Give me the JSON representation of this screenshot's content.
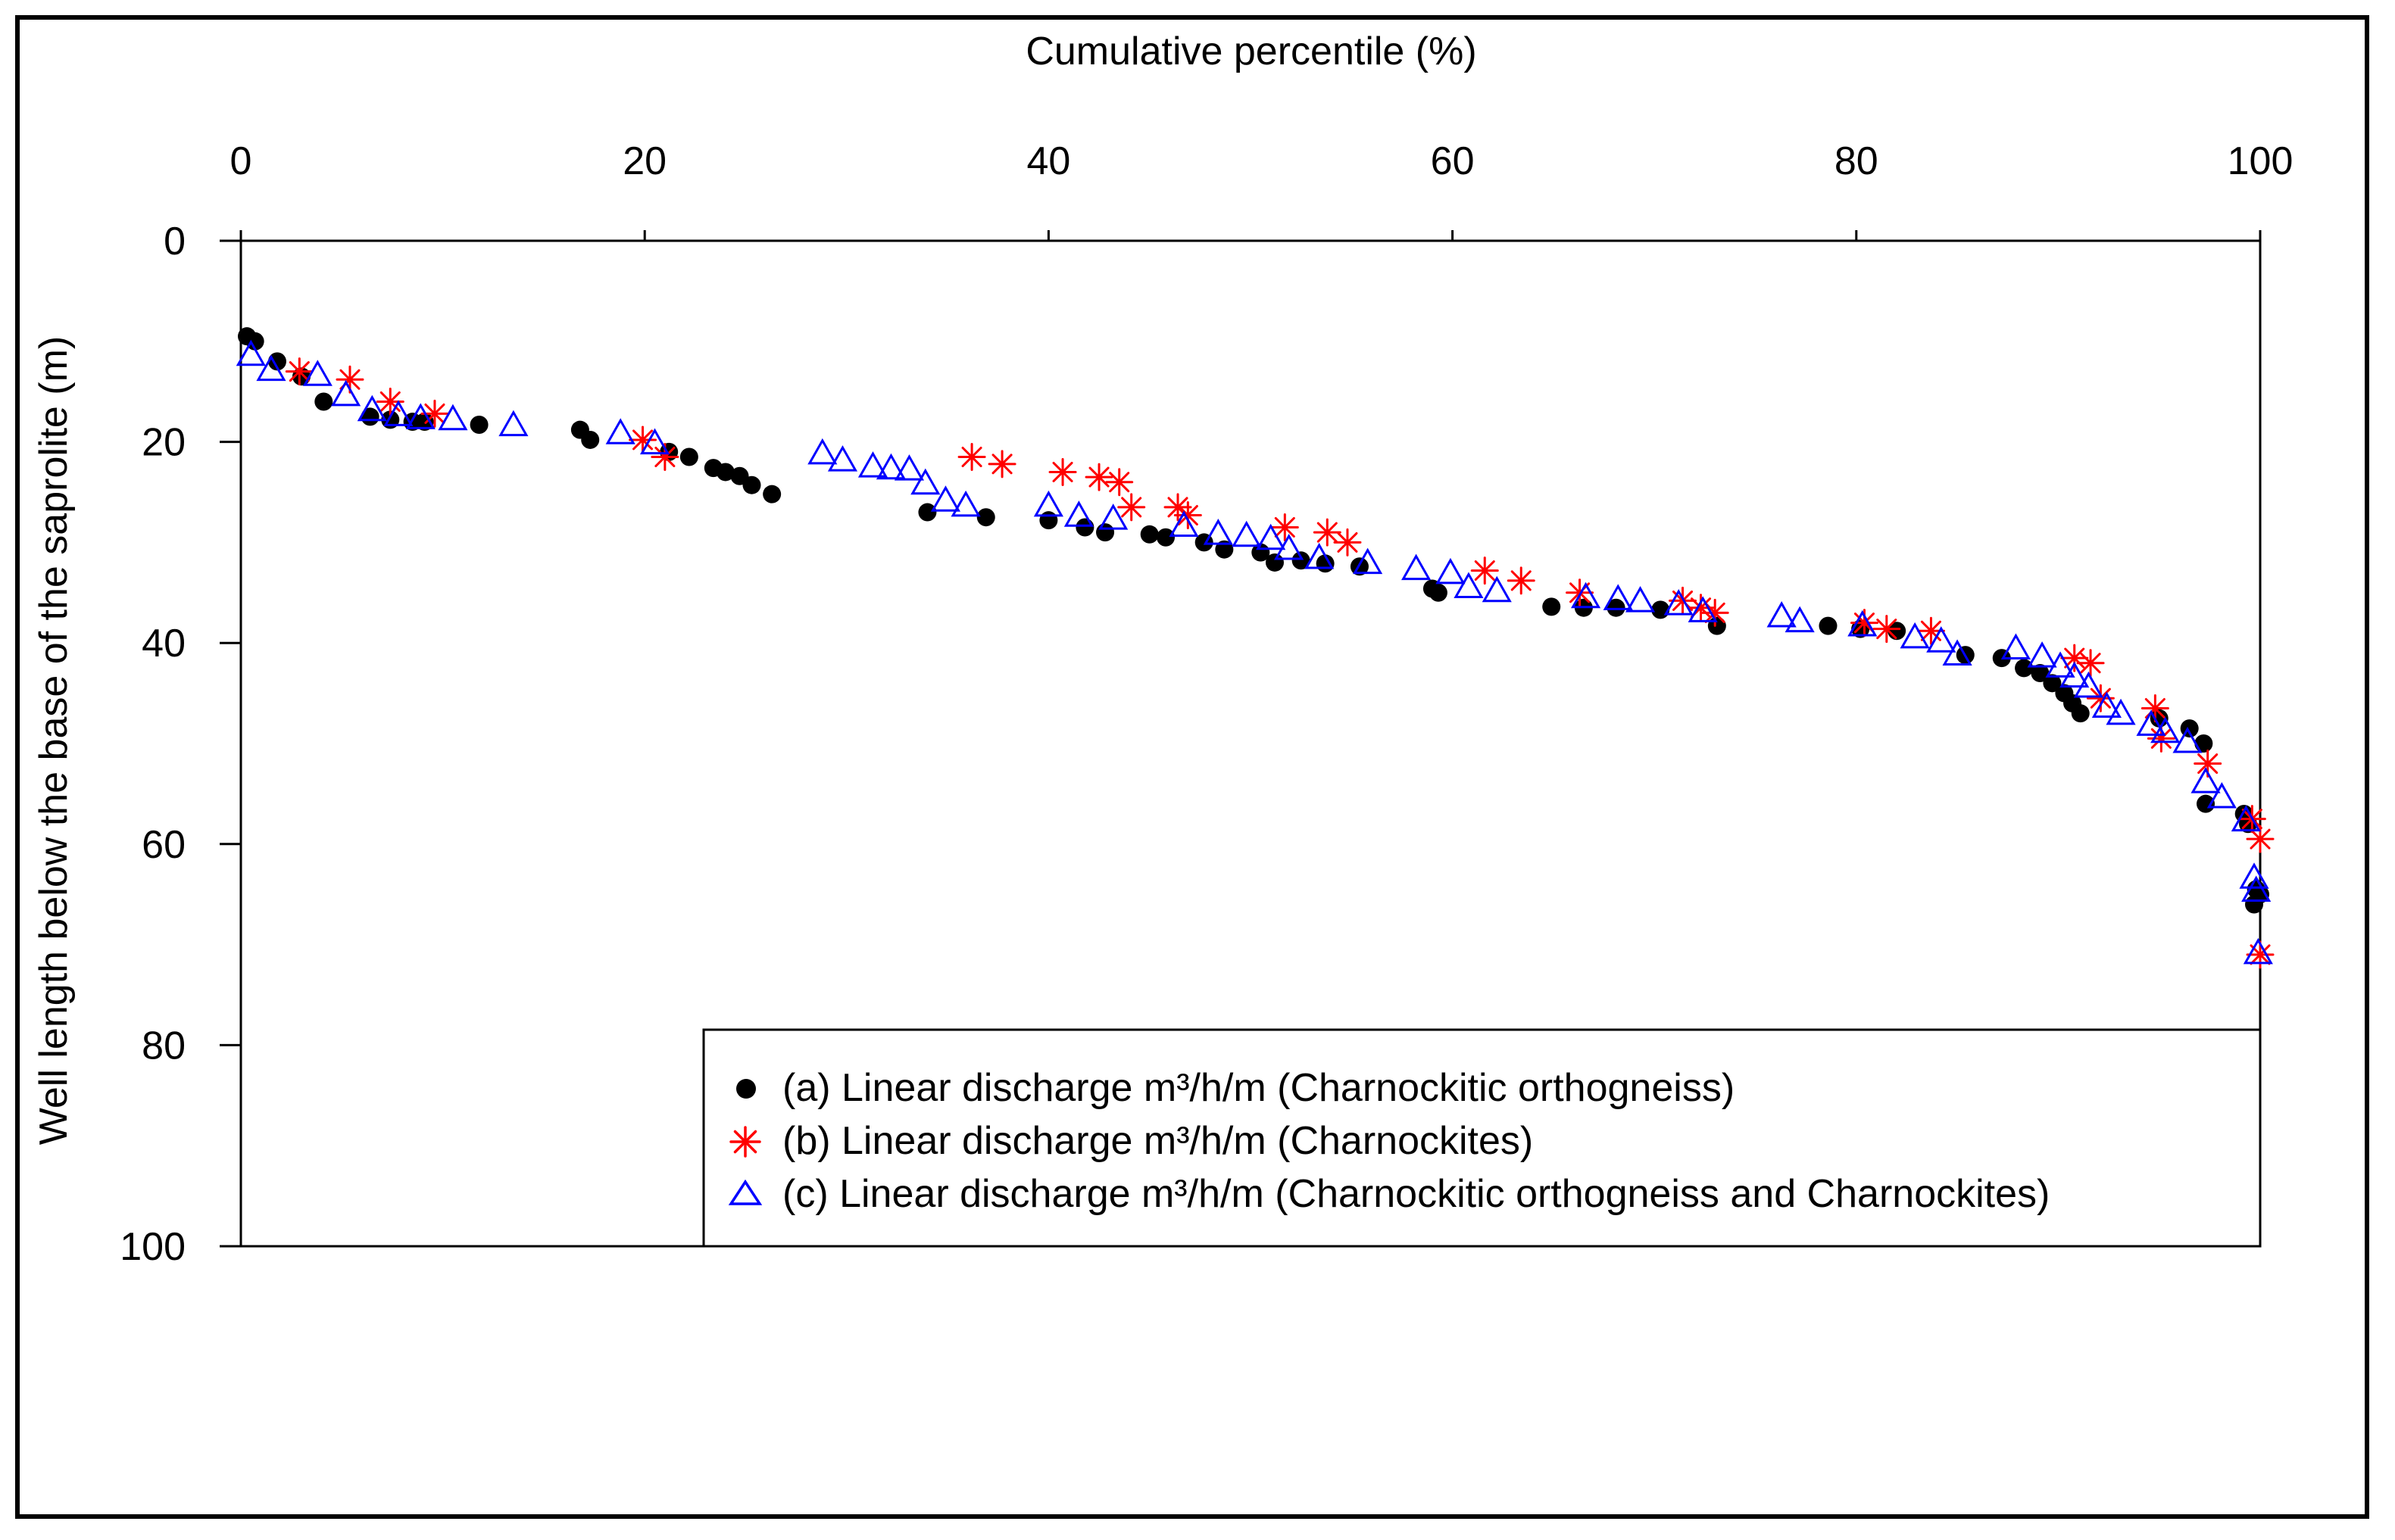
{
  "chart_data": {
    "type": "scatter",
    "title": "",
    "xlabel": "Cumulative percentile (%)",
    "ylabel": "Well length below the base of the saprolite (m)",
    "xlim": [
      0,
      100
    ],
    "ylim": [
      100,
      0
    ],
    "x_axis_position": "top",
    "y_axis_inverted": true,
    "xticks": [
      0,
      20,
      40,
      60,
      80,
      100
    ],
    "yticks": [
      0,
      20,
      40,
      60,
      80,
      100
    ],
    "grid": false,
    "legend_position": "bottom-right",
    "series": [
      {
        "name": "(a) Linear discharge m³/h/m (Charnockitic orthogneiss)",
        "marker": "filled-circle",
        "color": "#000000",
        "points": [
          [
            0.3,
            9.5
          ],
          [
            0.7,
            10.0
          ],
          [
            1.8,
            12.0
          ],
          [
            3.0,
            13.5
          ],
          [
            4.1,
            16.0
          ],
          [
            6.4,
            17.5
          ],
          [
            7.4,
            17.8
          ],
          [
            8.5,
            18.0
          ],
          [
            9.1,
            18.0
          ],
          [
            11.8,
            18.3
          ],
          [
            16.8,
            18.8
          ],
          [
            17.3,
            19.8
          ],
          [
            21.2,
            21.0
          ],
          [
            22.2,
            21.5
          ],
          [
            23.4,
            22.6
          ],
          [
            24.0,
            23.0
          ],
          [
            24.7,
            23.4
          ],
          [
            25.3,
            24.3
          ],
          [
            26.3,
            25.2
          ],
          [
            34.0,
            27.0
          ],
          [
            36.9,
            27.5
          ],
          [
            40.0,
            27.8
          ],
          [
            41.8,
            28.5
          ],
          [
            42.8,
            29.0
          ],
          [
            45.0,
            29.2
          ],
          [
            45.8,
            29.5
          ],
          [
            47.7,
            30.0
          ],
          [
            48.7,
            30.7
          ],
          [
            50.5,
            31.0
          ],
          [
            51.2,
            32.0
          ],
          [
            52.5,
            31.8
          ],
          [
            53.7,
            32.1
          ],
          [
            55.4,
            32.4
          ],
          [
            59.0,
            34.6
          ],
          [
            59.3,
            35.0
          ],
          [
            64.9,
            36.4
          ],
          [
            66.5,
            36.5
          ],
          [
            68.1,
            36.5
          ],
          [
            70.3,
            36.7
          ],
          [
            73.1,
            38.3
          ],
          [
            78.6,
            38.3
          ],
          [
            80.2,
            38.6
          ],
          [
            82.0,
            38.8
          ],
          [
            85.4,
            41.2
          ],
          [
            87.2,
            41.5
          ],
          [
            88.3,
            42.5
          ],
          [
            89.1,
            43.0
          ],
          [
            89.7,
            44.0
          ],
          [
            90.3,
            45.0
          ],
          [
            90.7,
            46.0
          ],
          [
            91.1,
            47.0
          ],
          [
            95.0,
            47.5
          ],
          [
            96.5,
            48.5
          ],
          [
            97.2,
            50.0
          ],
          [
            97.3,
            56.0
          ],
          [
            99.2,
            57.0
          ],
          [
            99.4,
            58.0
          ],
          [
            99.8,
            64.5
          ],
          [
            100.0,
            65.0
          ],
          [
            99.7,
            66.0
          ]
        ]
      },
      {
        "name": "(b) Linear discharge m³/h/m (Charnockites)",
        "marker": "asterisk",
        "color": "#ff0000",
        "points": [
          [
            2.9,
            13.0
          ],
          [
            5.4,
            13.8
          ],
          [
            7.4,
            16.0
          ],
          [
            9.6,
            17.2
          ],
          [
            19.9,
            19.8
          ],
          [
            21.0,
            21.5
          ],
          [
            36.2,
            21.5
          ],
          [
            37.7,
            22.2
          ],
          [
            40.7,
            23.0
          ],
          [
            42.5,
            23.5
          ],
          [
            43.5,
            24.0
          ],
          [
            44.1,
            26.5
          ],
          [
            46.4,
            26.5
          ],
          [
            46.9,
            27.3
          ],
          [
            51.7,
            28.5
          ],
          [
            53.8,
            29.0
          ],
          [
            54.8,
            30.0
          ],
          [
            61.6,
            32.8
          ],
          [
            63.4,
            33.8
          ],
          [
            66.3,
            35.0
          ],
          [
            71.4,
            35.8
          ],
          [
            72.3,
            36.5
          ],
          [
            73.0,
            37.0
          ],
          [
            80.4,
            38.0
          ],
          [
            81.5,
            38.6
          ],
          [
            83.7,
            38.8
          ],
          [
            90.8,
            41.5
          ],
          [
            91.6,
            42.0
          ],
          [
            92.1,
            45.5
          ],
          [
            94.8,
            46.5
          ],
          [
            95.1,
            49.5
          ],
          [
            97.4,
            52.0
          ],
          [
            99.6,
            57.5
          ],
          [
            100.0,
            59.5
          ],
          [
            100.0,
            71.0
          ]
        ]
      },
      {
        "name": "(c) Linear discharge m³/h/m (Charnockitic orthogneiss and Charnockites)",
        "marker": "open-triangle",
        "color": "#0000ff",
        "points": [
          [
            0.5,
            11.5
          ],
          [
            1.5,
            13.0
          ],
          [
            3.8,
            13.5
          ],
          [
            5.2,
            15.5
          ],
          [
            6.5,
            17.0
          ],
          [
            7.8,
            17.5
          ],
          [
            8.9,
            17.8
          ],
          [
            10.5,
            17.9
          ],
          [
            13.5,
            18.5
          ],
          [
            18.8,
            19.3
          ],
          [
            20.5,
            20.3
          ],
          [
            28.8,
            21.3
          ],
          [
            29.8,
            22.0
          ],
          [
            31.3,
            22.6
          ],
          [
            32.2,
            22.8
          ],
          [
            33.1,
            22.9
          ],
          [
            33.9,
            24.3
          ],
          [
            34.9,
            26.0
          ],
          [
            35.9,
            26.5
          ],
          [
            40.0,
            26.5
          ],
          [
            41.5,
            27.5
          ],
          [
            43.2,
            27.8
          ],
          [
            46.7,
            28.5
          ],
          [
            48.4,
            29.3
          ],
          [
            49.8,
            29.5
          ],
          [
            51.0,
            29.8
          ],
          [
            51.9,
            30.8
          ],
          [
            53.4,
            31.7
          ],
          [
            55.8,
            32.2
          ],
          [
            58.2,
            32.8
          ],
          [
            59.9,
            33.2
          ],
          [
            60.8,
            34.6
          ],
          [
            62.2,
            35.0
          ],
          [
            66.6,
            35.6
          ],
          [
            68.2,
            35.8
          ],
          [
            69.3,
            36.0
          ],
          [
            71.2,
            36.3
          ],
          [
            72.4,
            37.0
          ],
          [
            76.3,
            37.5
          ],
          [
            77.2,
            38.0
          ],
          [
            80.3,
            38.4
          ],
          [
            82.9,
            39.6
          ],
          [
            84.2,
            40.0
          ],
          [
            85.0,
            41.3
          ],
          [
            87.9,
            40.7
          ],
          [
            89.2,
            41.5
          ],
          [
            90.1,
            42.5
          ],
          [
            90.8,
            43.5
          ],
          [
            91.5,
            44.5
          ],
          [
            92.4,
            46.5
          ],
          [
            93.1,
            47.2
          ],
          [
            94.6,
            48.3
          ],
          [
            95.3,
            49.0
          ],
          [
            96.4,
            50.0
          ],
          [
            97.3,
            54.0
          ],
          [
            98.1,
            55.5
          ],
          [
            99.3,
            57.8
          ],
          [
            99.7,
            63.5
          ],
          [
            99.8,
            64.8
          ],
          [
            99.9,
            71.0
          ]
        ]
      }
    ]
  }
}
